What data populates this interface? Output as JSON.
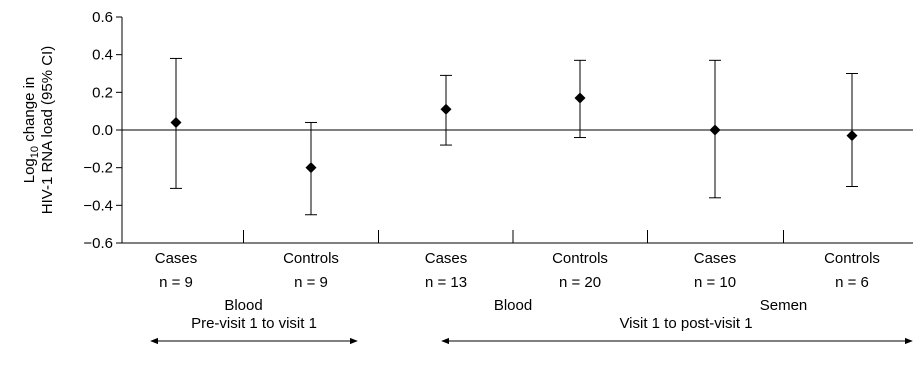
{
  "chart_data": {
    "type": "scatter",
    "title": "",
    "ylabel_line1": "Log",
    "ylabel_sub": "10",
    "ylabel_line1_rest": " change in",
    "ylabel_line2": "HIV-1 RNA load (95% CI)",
    "ylim": [
      -0.6,
      0.6
    ],
    "yticks": [
      0.6,
      0.4,
      0.2,
      0.0,
      -0.2,
      -0.4,
      -0.6
    ],
    "ytick_labels": [
      "0.6",
      "0.4",
      "0.2",
      "0.0",
      "−0.2",
      "−0.4",
      "−0.6"
    ],
    "reference_line": 0.0,
    "marker": "diamond",
    "groups": [
      {
        "label": "Cases",
        "n_label": "n = 9",
        "value": 0.04,
        "ci": [
          -0.31,
          0.38
        ]
      },
      {
        "label": "Controls",
        "n_label": "n = 9",
        "value": -0.2,
        "ci": [
          -0.45,
          0.04
        ]
      },
      {
        "label": "Cases",
        "n_label": "n = 13",
        "value": 0.11,
        "ci": [
          -0.08,
          0.29
        ]
      },
      {
        "label": "Controls",
        "n_label": "n = 20",
        "value": 0.17,
        "ci": [
          -0.04,
          0.37
        ]
      },
      {
        "label": "Cases",
        "n_label": "n = 10",
        "value": 0.0,
        "ci": [
          -0.36,
          0.37
        ]
      },
      {
        "label": "Controls",
        "n_label": "n = 6",
        "value": -0.03,
        "ci": [
          -0.3,
          0.3
        ]
      }
    ],
    "sample_labels": [
      "Blood",
      "Blood",
      "Semen"
    ],
    "period_labels": [
      "Pre-visit 1 to visit 1",
      "Visit 1 to post-visit 1"
    ]
  }
}
